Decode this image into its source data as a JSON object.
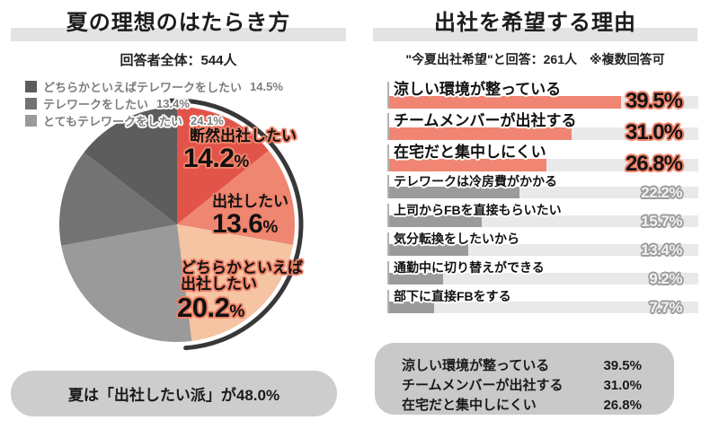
{
  "left_panel": {
    "title": "夏の理想のはたらき方",
    "subtitle": "回答者全体：544人",
    "footer": "夏は「出社したい派」が48.0%"
  },
  "right_panel": {
    "title": "出社を希望する理由",
    "subtitle": "\"今夏出社希望\"と回答：261人　※複数回答可"
  },
  "colors": {
    "accent_salmon": "#ef8572",
    "bar_gray": "#9b9b9b",
    "bar_track": "#e9e9e9",
    "band_gray": "#e3e3e3",
    "pill_gray": "#cdcdcd",
    "summary_gray": "#c9c9c9",
    "highlight_arc": "#383838"
  },
  "chart_data": [
    {
      "type": "pie",
      "title": "夏の理想のはたらき方",
      "subtitle": "回答者全体：544人",
      "slices": [
        {
          "label": "断然出社したい",
          "value": 14.2,
          "color": "#e2544a"
        },
        {
          "label": "出社したい",
          "value": 13.6,
          "color": "#ee8672"
        },
        {
          "label": "どちらかといえば出社したい",
          "value": 20.2,
          "color": "#f5c4a3"
        },
        {
          "label": "とてもテレワークをしたい",
          "value": 24.1,
          "color": "#9a9a9a"
        },
        {
          "label": "テレワークをしたい",
          "value": 13.4,
          "color": "#737373"
        },
        {
          "label": "どちらかといえばテレワークをしたい",
          "value": 14.5,
          "color": "#5d5d5d"
        }
      ],
      "highlight_arc": {
        "covers": "出社したい派",
        "share": 48.0,
        "from_deg": -4,
        "to_deg": 176
      },
      "annotation": "夏は「出社したい派」が48.0%"
    },
    {
      "type": "bar",
      "title": "出社を希望する理由",
      "subtitle": "\"今夏出社希望\"と回答：261人",
      "note": "※複数回答可",
      "categories": [
        "涼しい環境が整っている",
        "チームメンバーが出社する",
        "在宅だと集中しにくい",
        "テレワークは冷房費がかかる",
        "上司からFBを直接もらいたい",
        "気分転換をしたいから",
        "通勤中に切り替えができる",
        "部下に直接FBをする"
      ],
      "values": [
        39.5,
        31.0,
        26.8,
        22.2,
        15.7,
        13.4,
        9.2,
        7.7
      ],
      "highlight_top_n": 3,
      "xlim": [
        0,
        52.6
      ],
      "legend_position": "none"
    }
  ]
}
